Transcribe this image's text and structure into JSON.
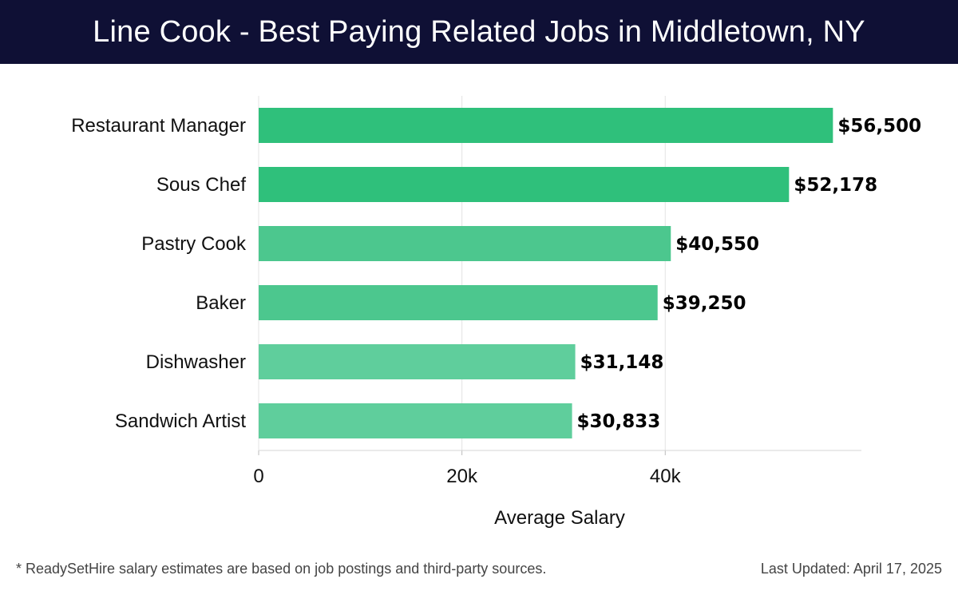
{
  "header": {
    "title": "Line Cook - Best Paying Related Jobs in Middletown, NY"
  },
  "footer": {
    "note": "* ReadySetHire salary estimates are based on job postings and third-party sources.",
    "updated": "Last Updated: April 17, 2025"
  },
  "chart_data": {
    "type": "bar",
    "orientation": "horizontal",
    "title": "Line Cook - Best Paying Related Jobs in Middletown, NY",
    "xlabel": "Average Salary",
    "ylabel": "",
    "categories": [
      "Restaurant Manager",
      "Sous Chef",
      "Pastry Cook",
      "Baker",
      "Dishwasher",
      "Sandwich Artist"
    ],
    "values": [
      56500,
      52178,
      40550,
      39250,
      31148,
      30833
    ],
    "value_labels": [
      "$56,500",
      "$52,178",
      "$40,550",
      "$39,250",
      "$31,148",
      "$30,833"
    ],
    "xticks": [
      0,
      20000,
      40000
    ],
    "xtick_labels": [
      "0",
      "20k",
      "40k"
    ],
    "xlim": [
      0,
      59300
    ],
    "grid": "vertical",
    "bar_colors": [
      "#2bbf78",
      "#2bbf78",
      "#48c68c",
      "#48c68c",
      "#5ccd9a",
      "#5ccd9a"
    ]
  }
}
